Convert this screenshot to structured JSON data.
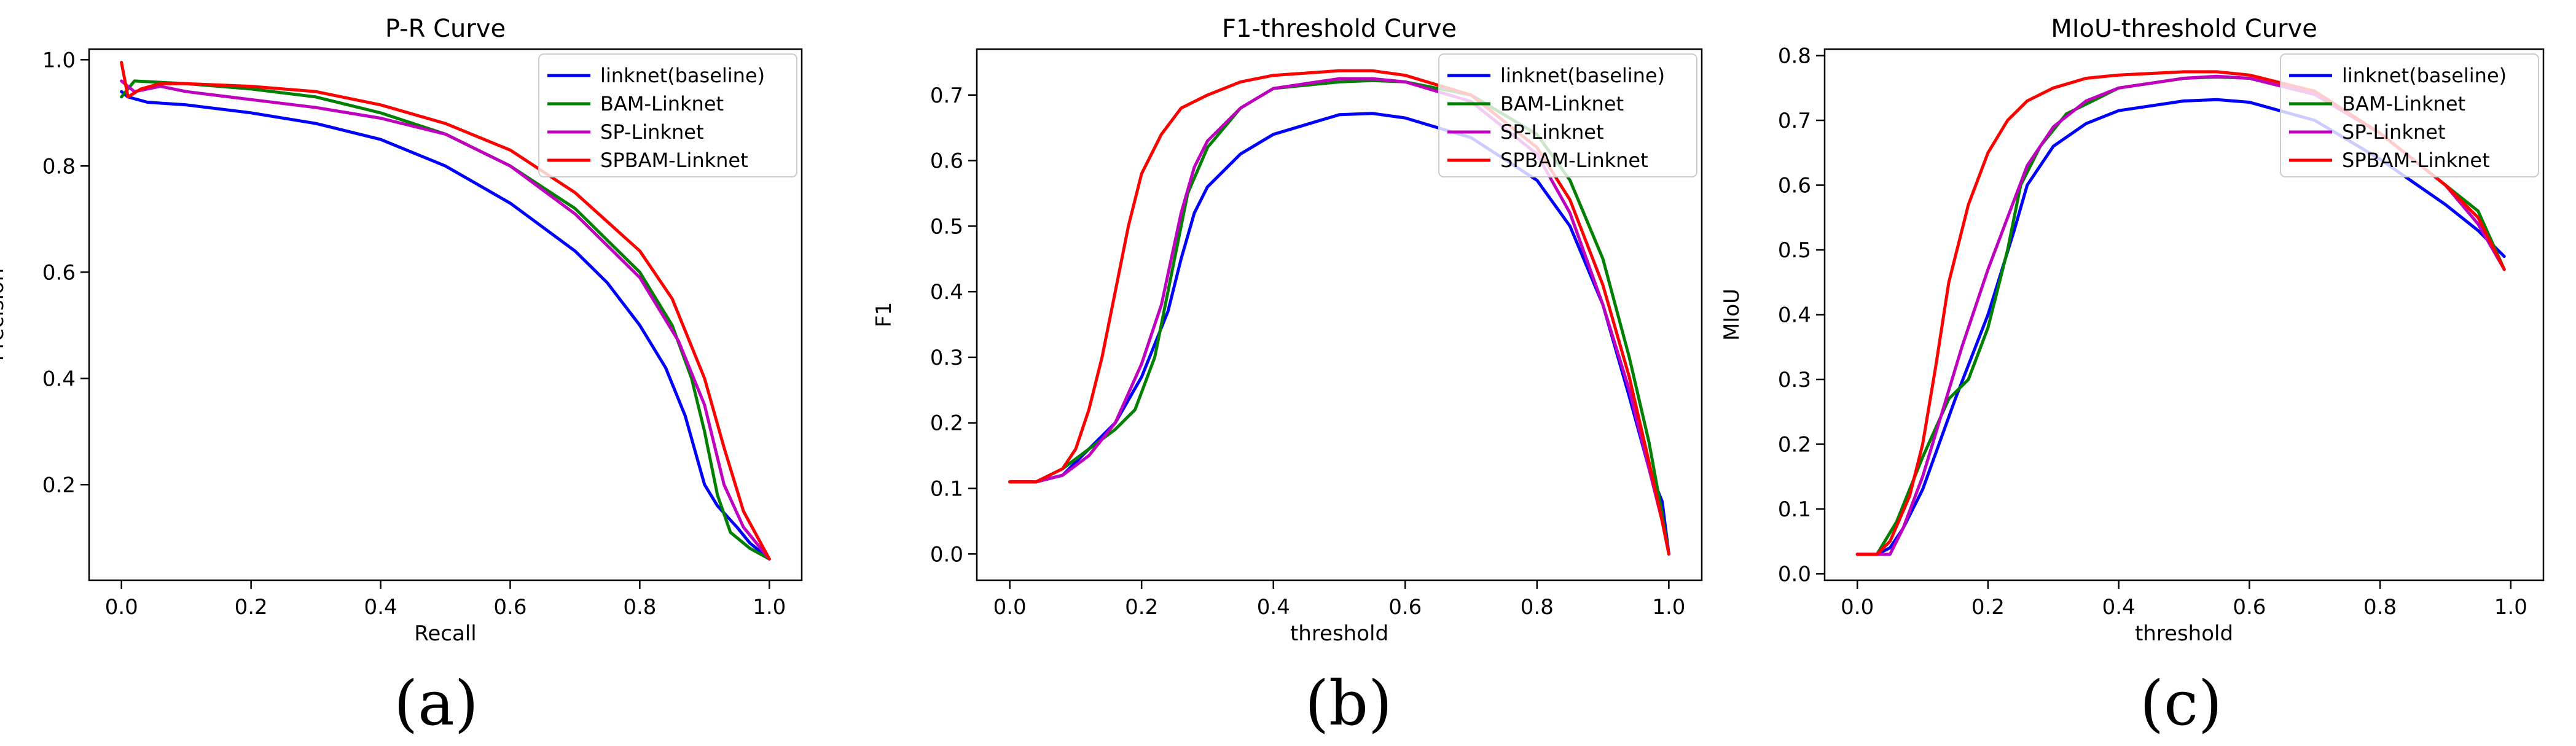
{
  "chart_data": [
    {
      "type": "line",
      "title": "P-R Curve",
      "xlabel": "Recall",
      "ylabel": "Precision",
      "caption": "(a)",
      "xlim": [
        -0.05,
        1.05
      ],
      "ylim": [
        0.02,
        1.02
      ],
      "xticks": [
        0.0,
        0.2,
        0.4,
        0.6,
        0.8,
        1.0
      ],
      "xtick_labels": [
        "0.0",
        "0.2",
        "0.4",
        "0.6",
        "0.8",
        "1.0"
      ],
      "yticks": [
        0.2,
        0.4,
        0.6,
        0.8,
        1.0
      ],
      "ytick_labels": [
        "0.2",
        "0.4",
        "0.6",
        "0.8",
        "1.0"
      ],
      "legend_position": "top-right",
      "grid": false,
      "series": [
        {
          "name": "linknet(baseline)",
          "color": "#0000ff",
          "x": [
            0.0,
            0.01,
            0.04,
            0.1,
            0.2,
            0.3,
            0.4,
            0.5,
            0.6,
            0.7,
            0.75,
            0.8,
            0.84,
            0.87,
            0.9,
            0.92,
            0.95,
            0.97,
            1.0
          ],
          "y": [
            0.94,
            0.93,
            0.92,
            0.915,
            0.9,
            0.88,
            0.85,
            0.8,
            0.73,
            0.64,
            0.58,
            0.5,
            0.42,
            0.33,
            0.2,
            0.16,
            0.12,
            0.09,
            0.06
          ]
        },
        {
          "name": "BAM-Linknet",
          "color": "#008000",
          "x": [
            0.0,
            0.02,
            0.1,
            0.2,
            0.3,
            0.4,
            0.5,
            0.6,
            0.7,
            0.8,
            0.85,
            0.88,
            0.9,
            0.92,
            0.94,
            0.97,
            1.0
          ],
          "y": [
            0.93,
            0.96,
            0.955,
            0.945,
            0.93,
            0.9,
            0.86,
            0.8,
            0.72,
            0.6,
            0.5,
            0.4,
            0.3,
            0.18,
            0.11,
            0.08,
            0.06
          ]
        },
        {
          "name": "SP-Linknet",
          "color": "#bf00bf",
          "x": [
            0.0,
            0.02,
            0.06,
            0.1,
            0.2,
            0.3,
            0.4,
            0.5,
            0.6,
            0.7,
            0.8,
            0.86,
            0.9,
            0.93,
            0.96,
            1.0
          ],
          "y": [
            0.96,
            0.94,
            0.95,
            0.94,
            0.925,
            0.91,
            0.89,
            0.86,
            0.8,
            0.71,
            0.59,
            0.47,
            0.35,
            0.2,
            0.12,
            0.06
          ]
        },
        {
          "name": "SPBAM-Linknet",
          "color": "#ff0000",
          "x": [
            0.0,
            0.01,
            0.03,
            0.06,
            0.1,
            0.2,
            0.3,
            0.4,
            0.5,
            0.6,
            0.7,
            0.8,
            0.85,
            0.9,
            0.93,
            0.96,
            1.0
          ],
          "y": [
            0.995,
            0.93,
            0.945,
            0.955,
            0.955,
            0.95,
            0.94,
            0.915,
            0.88,
            0.83,
            0.75,
            0.64,
            0.55,
            0.4,
            0.27,
            0.15,
            0.06
          ]
        }
      ]
    },
    {
      "type": "line",
      "title": "F1-threshold Curve",
      "xlabel": "threshold",
      "ylabel": "F1",
      "caption": "(b)",
      "xlim": [
        -0.05,
        1.05
      ],
      "ylim": [
        -0.04,
        0.77
      ],
      "xticks": [
        0.0,
        0.2,
        0.4,
        0.6,
        0.8,
        1.0
      ],
      "xtick_labels": [
        "0.0",
        "0.2",
        "0.4",
        "0.6",
        "0.8",
        "1.0"
      ],
      "yticks": [
        0.0,
        0.1,
        0.2,
        0.3,
        0.4,
        0.5,
        0.6,
        0.7
      ],
      "ytick_labels": [
        "0.0",
        "0.1",
        "0.2",
        "0.3",
        "0.4",
        "0.5",
        "0.6",
        "0.7"
      ],
      "legend_position": "top-right",
      "grid": false,
      "series": [
        {
          "name": "linknet(baseline)",
          "color": "#0000ff",
          "x": [
            0.0,
            0.04,
            0.08,
            0.12,
            0.16,
            0.2,
            0.24,
            0.26,
            0.28,
            0.3,
            0.35,
            0.4,
            0.5,
            0.55,
            0.6,
            0.7,
            0.8,
            0.85,
            0.9,
            0.94,
            0.97,
            0.99,
            1.0
          ],
          "y": [
            0.11,
            0.11,
            0.12,
            0.16,
            0.2,
            0.27,
            0.37,
            0.45,
            0.52,
            0.56,
            0.61,
            0.64,
            0.67,
            0.672,
            0.665,
            0.635,
            0.57,
            0.5,
            0.38,
            0.24,
            0.13,
            0.08,
            0.0
          ]
        },
        {
          "name": "BAM-Linknet",
          "color": "#008000",
          "x": [
            0.0,
            0.04,
            0.08,
            0.12,
            0.16,
            0.19,
            0.22,
            0.25,
            0.27,
            0.3,
            0.35,
            0.4,
            0.5,
            0.55,
            0.6,
            0.7,
            0.8,
            0.85,
            0.9,
            0.94,
            0.97,
            0.99,
            1.0
          ],
          "y": [
            0.11,
            0.11,
            0.13,
            0.16,
            0.19,
            0.22,
            0.3,
            0.45,
            0.55,
            0.62,
            0.68,
            0.71,
            0.72,
            0.722,
            0.72,
            0.7,
            0.64,
            0.57,
            0.45,
            0.3,
            0.17,
            0.06,
            0.0
          ]
        },
        {
          "name": "SP-Linknet",
          "color": "#bf00bf",
          "x": [
            0.0,
            0.04,
            0.08,
            0.12,
            0.16,
            0.2,
            0.23,
            0.26,
            0.28,
            0.3,
            0.35,
            0.4,
            0.5,
            0.55,
            0.6,
            0.7,
            0.8,
            0.85,
            0.9,
            0.94,
            0.97,
            0.99,
            1.0
          ],
          "y": [
            0.11,
            0.11,
            0.12,
            0.15,
            0.2,
            0.29,
            0.38,
            0.52,
            0.59,
            0.63,
            0.68,
            0.71,
            0.725,
            0.725,
            0.72,
            0.69,
            0.61,
            0.52,
            0.38,
            0.25,
            0.13,
            0.05,
            0.0
          ]
        },
        {
          "name": "SPBAM-Linknet",
          "color": "#ff0000",
          "x": [
            0.0,
            0.04,
            0.08,
            0.1,
            0.12,
            0.14,
            0.16,
            0.18,
            0.2,
            0.23,
            0.26,
            0.3,
            0.35,
            0.4,
            0.5,
            0.55,
            0.6,
            0.7,
            0.8,
            0.85,
            0.9,
            0.94,
            0.97,
            0.99,
            1.0
          ],
          "y": [
            0.11,
            0.11,
            0.13,
            0.16,
            0.22,
            0.3,
            0.4,
            0.5,
            0.58,
            0.64,
            0.68,
            0.7,
            0.72,
            0.73,
            0.737,
            0.737,
            0.73,
            0.7,
            0.62,
            0.54,
            0.41,
            0.27,
            0.14,
            0.05,
            0.0
          ]
        }
      ]
    },
    {
      "type": "line",
      "title": "MIoU-threshold Curve",
      "xlabel": "threshold",
      "ylabel": "MIoU",
      "caption": "(c)",
      "xlim": [
        -0.05,
        1.05
      ],
      "ylim": [
        -0.01,
        0.81
      ],
      "xticks": [
        0.0,
        0.2,
        0.4,
        0.6,
        0.8,
        1.0
      ],
      "xtick_labels": [
        "0.0",
        "0.2",
        "0.4",
        "0.6",
        "0.8",
        "1.0"
      ],
      "yticks": [
        0.0,
        0.1,
        0.2,
        0.3,
        0.4,
        0.5,
        0.6,
        0.7,
        0.8
      ],
      "ytick_labels": [
        "0.0",
        "0.1",
        "0.2",
        "0.3",
        "0.4",
        "0.5",
        "0.6",
        "0.7",
        "0.8"
      ],
      "legend_position": "top-right",
      "grid": false,
      "series": [
        {
          "name": "linknet(baseline)",
          "color": "#0000ff",
          "x": [
            0.0,
            0.03,
            0.05,
            0.07,
            0.1,
            0.15,
            0.2,
            0.24,
            0.26,
            0.3,
            0.35,
            0.4,
            0.5,
            0.55,
            0.6,
            0.7,
            0.8,
            0.9,
            0.95,
            0.99
          ],
          "y": [
            0.03,
            0.03,
            0.04,
            0.07,
            0.13,
            0.27,
            0.4,
            0.53,
            0.6,
            0.66,
            0.695,
            0.715,
            0.73,
            0.732,
            0.728,
            0.7,
            0.64,
            0.57,
            0.53,
            0.49
          ]
        },
        {
          "name": "BAM-Linknet",
          "color": "#008000",
          "x": [
            0.0,
            0.03,
            0.06,
            0.1,
            0.14,
            0.17,
            0.2,
            0.23,
            0.25,
            0.28,
            0.32,
            0.4,
            0.5,
            0.55,
            0.6,
            0.7,
            0.8,
            0.9,
            0.95,
            0.99
          ],
          "y": [
            0.03,
            0.03,
            0.08,
            0.18,
            0.27,
            0.3,
            0.38,
            0.5,
            0.6,
            0.66,
            0.71,
            0.75,
            0.765,
            0.767,
            0.765,
            0.74,
            0.68,
            0.6,
            0.56,
            0.47
          ]
        },
        {
          "name": "SP-Linknet",
          "color": "#bf00bf",
          "x": [
            0.0,
            0.03,
            0.05,
            0.07,
            0.1,
            0.13,
            0.16,
            0.2,
            0.23,
            0.26,
            0.3,
            0.35,
            0.4,
            0.5,
            0.55,
            0.6,
            0.7,
            0.8,
            0.9,
            0.95,
            0.99
          ],
          "y": [
            0.03,
            0.03,
            0.03,
            0.07,
            0.15,
            0.25,
            0.35,
            0.47,
            0.55,
            0.63,
            0.69,
            0.73,
            0.75,
            0.765,
            0.768,
            0.765,
            0.74,
            0.68,
            0.6,
            0.54,
            0.47
          ]
        },
        {
          "name": "SPBAM-Linknet",
          "color": "#ff0000",
          "x": [
            0.0,
            0.03,
            0.05,
            0.08,
            0.1,
            0.12,
            0.14,
            0.17,
            0.2,
            0.23,
            0.26,
            0.3,
            0.35,
            0.4,
            0.5,
            0.55,
            0.6,
            0.7,
            0.8,
            0.9,
            0.95,
            0.99
          ],
          "y": [
            0.03,
            0.03,
            0.05,
            0.12,
            0.2,
            0.32,
            0.45,
            0.57,
            0.65,
            0.7,
            0.73,
            0.75,
            0.765,
            0.77,
            0.775,
            0.775,
            0.77,
            0.745,
            0.68,
            0.6,
            0.55,
            0.47
          ]
        }
      ]
    }
  ]
}
